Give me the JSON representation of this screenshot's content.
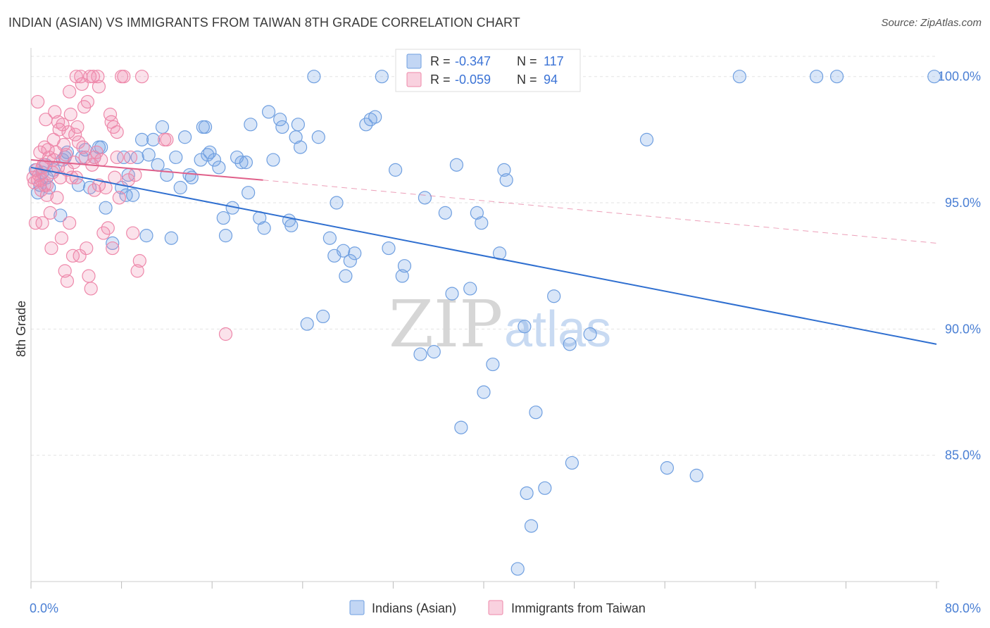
{
  "title": "INDIAN (ASIAN) VS IMMIGRANTS FROM TAIWAN 8TH GRADE CORRELATION CHART",
  "source": "Source: ZipAtlas.com",
  "watermark": {
    "zip": "ZIP",
    "atlas": "atlas"
  },
  "colors": {
    "blue": "#6f9fe0",
    "blue_fill": "rgba(120,165,230,0.28)",
    "blue_line": "#2f6fd0",
    "pink": "#ee88aa",
    "pink_fill": "rgba(240,140,175,0.25)",
    "pink_line": "#e0608a",
    "grid": "#e3e3e3",
    "tick_text": "#4a7fd4"
  },
  "legend": {
    "r_label": "R =",
    "n_label": "N =",
    "series1": {
      "r": "-0.347",
      "n": "117"
    },
    "series2": {
      "r": "-0.059",
      "n": "94"
    }
  },
  "chart_data": {
    "type": "scatter",
    "xlabel": "",
    "ylabel": "8th Grade",
    "xlim": [
      0,
      80
    ],
    "ylim": [
      80,
      100.8
    ],
    "x_tick_labels": [
      "0.0%",
      "80.0%"
    ],
    "y_ticks": [
      85,
      90,
      95,
      100
    ],
    "y_tick_labels": [
      "85.0%",
      "90.0%",
      "95.0%",
      "100.0%"
    ],
    "legend_position": "top-center",
    "grid": true,
    "series": [
      {
        "name": "Indians (Asian)",
        "color": "#6f9fe0",
        "trend": {
          "x": [
            0,
            80
          ],
          "y": [
            96.4,
            89.4
          ],
          "style": "solid"
        },
        "points": [
          [
            0.4,
            96.3
          ],
          [
            0.6,
            95.4
          ],
          [
            0.8,
            95.7
          ],
          [
            1.0,
            96.2
          ],
          [
            1.3,
            96.5
          ],
          [
            1.4,
            96.0
          ],
          [
            1.6,
            95.6
          ],
          [
            2.0,
            96.3
          ],
          [
            2.6,
            94.5
          ],
          [
            2.8,
            96.7
          ],
          [
            3.0,
            96.8
          ],
          [
            3.2,
            97.0
          ],
          [
            4.2,
            95.7
          ],
          [
            4.5,
            96.8
          ],
          [
            4.8,
            97.1
          ],
          [
            5.2,
            95.6
          ],
          [
            5.6,
            96.8
          ],
          [
            6.0,
            97.2
          ],
          [
            6.2,
            97.2
          ],
          [
            6.6,
            94.8
          ],
          [
            7.2,
            93.4
          ],
          [
            8.0,
            95.6
          ],
          [
            8.2,
            96.8
          ],
          [
            8.4,
            95.3
          ],
          [
            8.6,
            96.1
          ],
          [
            9.0,
            95.3
          ],
          [
            9.4,
            96.8
          ],
          [
            9.8,
            97.5
          ],
          [
            10.2,
            93.7
          ],
          [
            10.4,
            96.9
          ],
          [
            10.8,
            97.5
          ],
          [
            11.2,
            96.5
          ],
          [
            11.6,
            98.0
          ],
          [
            12.0,
            96.1
          ],
          [
            12.4,
            93.6
          ],
          [
            12.8,
            96.8
          ],
          [
            13.2,
            95.6
          ],
          [
            13.6,
            97.6
          ],
          [
            14.0,
            96.1
          ],
          [
            14.2,
            96.0
          ],
          [
            15.0,
            96.7
          ],
          [
            15.4,
            98.0
          ],
          [
            15.8,
            97.0
          ],
          [
            16.2,
            96.7
          ],
          [
            16.6,
            96.4
          ],
          [
            17.0,
            94.4
          ],
          [
            17.2,
            93.7
          ],
          [
            17.8,
            94.8
          ],
          [
            18.6,
            96.6
          ],
          [
            19.0,
            96.6
          ],
          [
            19.2,
            95.4
          ],
          [
            19.4,
            98.1
          ],
          [
            20.2,
            94.4
          ],
          [
            20.6,
            94.0
          ],
          [
            21.0,
            98.6
          ],
          [
            21.4,
            96.7
          ],
          [
            22.0,
            98.3
          ],
          [
            22.2,
            98.0
          ],
          [
            22.8,
            94.3
          ],
          [
            23.0,
            94.1
          ],
          [
            23.6,
            98.1
          ],
          [
            23.8,
            97.2
          ],
          [
            24.4,
            90.2
          ],
          [
            25.0,
            100.0
          ],
          [
            25.4,
            97.6
          ],
          [
            25.8,
            90.5
          ],
          [
            26.4,
            93.6
          ],
          [
            26.8,
            92.9
          ],
          [
            27.0,
            95.0
          ],
          [
            27.6,
            93.1
          ],
          [
            27.8,
            92.1
          ],
          [
            28.2,
            92.7
          ],
          [
            28.6,
            93.0
          ],
          [
            29.6,
            98.1
          ],
          [
            30.0,
            98.3
          ],
          [
            30.4,
            98.4
          ],
          [
            31.0,
            100.0
          ],
          [
            31.6,
            93.2
          ],
          [
            32.2,
            96.3
          ],
          [
            32.8,
            92.1
          ],
          [
            33.0,
            92.5
          ],
          [
            34.4,
            89.0
          ],
          [
            34.8,
            95.2
          ],
          [
            35.6,
            89.1
          ],
          [
            36.6,
            94.6
          ],
          [
            37.2,
            91.4
          ],
          [
            37.6,
            96.5
          ],
          [
            38.0,
            86.1
          ],
          [
            38.8,
            91.6
          ],
          [
            39.4,
            94.6
          ],
          [
            39.8,
            94.2
          ],
          [
            40.0,
            87.5
          ],
          [
            40.8,
            88.6
          ],
          [
            41.4,
            93.0
          ],
          [
            41.8,
            96.3
          ],
          [
            42.0,
            95.9
          ],
          [
            43.6,
            90.1
          ],
          [
            43.8,
            83.5
          ],
          [
            44.2,
            82.2
          ],
          [
            44.6,
            86.7
          ],
          [
            45.4,
            83.7
          ],
          [
            46.2,
            91.3
          ],
          [
            47.6,
            89.4
          ],
          [
            47.8,
            84.7
          ],
          [
            49.4,
            89.8
          ],
          [
            54.4,
            97.5
          ],
          [
            56.2,
            84.5
          ],
          [
            58.8,
            84.2
          ],
          [
            62.6,
            100.0
          ],
          [
            69.4,
            100.0
          ],
          [
            71.2,
            100.0
          ],
          [
            79.8,
            100.0
          ],
          [
            15.6,
            96.9
          ],
          [
            18.2,
            96.8
          ],
          [
            23.4,
            97.6
          ],
          [
            15.2,
            98.0
          ],
          [
            43.0,
            80.5
          ]
        ]
      },
      {
        "name": "Immigrants from Taiwan",
        "color": "#ee88aa",
        "trend": {
          "x": [
            0,
            20.5
          ],
          "y": [
            96.7,
            95.9
          ],
          "style": "solid",
          "extended": {
            "x": [
              20.5,
              80
            ],
            "y": [
              95.9,
              93.4
            ],
            "style": "dashed"
          }
        },
        "points": [
          [
            0.2,
            96.0
          ],
          [
            0.3,
            95.8
          ],
          [
            0.4,
            94.2
          ],
          [
            0.5,
            96.3
          ],
          [
            0.6,
            95.9
          ],
          [
            0.7,
            96.1
          ],
          [
            0.8,
            97.0
          ],
          [
            0.9,
            95.5
          ],
          [
            1.0,
            94.2
          ],
          [
            1.1,
            96.5
          ],
          [
            1.2,
            97.2
          ],
          [
            1.3,
            98.3
          ],
          [
            1.4,
            95.3
          ],
          [
            1.5,
            97.1
          ],
          [
            1.6,
            96.8
          ],
          [
            1.7,
            94.6
          ],
          [
            1.8,
            93.2
          ],
          [
            1.9,
            96.2
          ],
          [
            2.0,
            97.5
          ],
          [
            2.1,
            98.6
          ],
          [
            2.2,
            97.0
          ],
          [
            2.3,
            95.2
          ],
          [
            2.4,
            96.4
          ],
          [
            2.5,
            97.9
          ],
          [
            2.6,
            96.0
          ],
          [
            2.7,
            93.6
          ],
          [
            2.8,
            98.1
          ],
          [
            2.9,
            97.3
          ],
          [
            3.0,
            92.3
          ],
          [
            3.1,
            96.9
          ],
          [
            3.2,
            91.9
          ],
          [
            3.3,
            97.8
          ],
          [
            3.4,
            99.4
          ],
          [
            3.5,
            98.5
          ],
          [
            3.6,
            96.0
          ],
          [
            3.7,
            92.9
          ],
          [
            3.8,
            96.6
          ],
          [
            3.9,
            97.7
          ],
          [
            4.0,
            100.0
          ],
          [
            4.1,
            98.0
          ],
          [
            4.2,
            97.4
          ],
          [
            4.3,
            92.9
          ],
          [
            4.4,
            100.0
          ],
          [
            4.5,
            99.7
          ],
          [
            4.6,
            97.2
          ],
          [
            4.7,
            98.8
          ],
          [
            4.8,
            96.8
          ],
          [
            4.9,
            93.2
          ],
          [
            5.0,
            99.0
          ],
          [
            5.1,
            92.1
          ],
          [
            5.2,
            100.0
          ],
          [
            5.3,
            91.6
          ],
          [
            5.4,
            96.5
          ],
          [
            5.5,
            100.0
          ],
          [
            5.6,
            96.8
          ],
          [
            5.8,
            97.0
          ],
          [
            5.9,
            100.0
          ],
          [
            6.0,
            99.6
          ],
          [
            6.2,
            96.7
          ],
          [
            6.6,
            95.6
          ],
          [
            6.4,
            93.8
          ],
          [
            6.8,
            94.0
          ],
          [
            7.0,
            98.5
          ],
          [
            7.1,
            98.2
          ],
          [
            7.2,
            93.2
          ],
          [
            7.3,
            98.0
          ],
          [
            7.4,
            96.0
          ],
          [
            7.6,
            97.8
          ],
          [
            7.8,
            95.2
          ],
          [
            8.0,
            100.0
          ],
          [
            8.2,
            100.0
          ],
          [
            8.6,
            95.9
          ],
          [
            8.8,
            96.8
          ],
          [
            9.0,
            93.8
          ],
          [
            9.2,
            96.1
          ],
          [
            9.4,
            92.3
          ],
          [
            9.6,
            92.7
          ],
          [
            9.8,
            100.0
          ],
          [
            11.8,
            97.5
          ],
          [
            12.0,
            97.5
          ],
          [
            17.2,
            89.8
          ],
          [
            1.0,
            96.4
          ],
          [
            1.4,
            95.7
          ],
          [
            2.4,
            98.2
          ],
          [
            3.2,
            96.3
          ],
          [
            4.0,
            96.0
          ],
          [
            0.6,
            99.0
          ],
          [
            2.0,
            96.7
          ],
          [
            6.0,
            95.7
          ],
          [
            7.6,
            96.8
          ],
          [
            0.9,
            95.9
          ],
          [
            1.2,
            95.7
          ],
          [
            3.4,
            94.2
          ],
          [
            5.6,
            95.5
          ]
        ]
      }
    ]
  }
}
